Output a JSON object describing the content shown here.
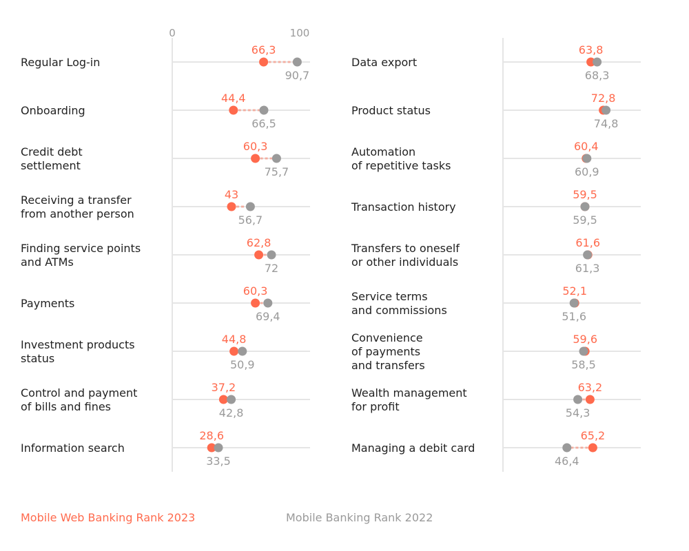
{
  "chart_data": {
    "type": "dumbbell",
    "title": "",
    "xlabel": "",
    "ylabel": "",
    "xlim": [
      0,
      100
    ],
    "x_ticks": [
      "0",
      "100"
    ],
    "grid": false,
    "colors": {
      "rank_2023": "#FF6A4D",
      "rank_2022": "#9A9A9A",
      "gridline": "#E5E5E5",
      "text": "#222222"
    },
    "legend": [
      {
        "name": "Mobile Web Banking Rank 2023",
        "color": "#FF6A4D"
      },
      {
        "name": "Mobile Banking Rank 2022",
        "color": "#9A9A9A"
      }
    ],
    "legend_position": "bottom-left",
    "panels": [
      {
        "name": "left",
        "rows": [
          {
            "category": [
              "Regular Log-in"
            ],
            "rank_2023": 66.3,
            "rank_2022": 90.7,
            "label_2023": "66,3",
            "label_2022": "90,7"
          },
          {
            "category": [
              "Onboarding"
            ],
            "rank_2023": 44.4,
            "rank_2022": 66.5,
            "label_2023": "44,4",
            "label_2022": "66,5"
          },
          {
            "category": [
              "Credit debt",
              "settlement"
            ],
            "rank_2023": 60.3,
            "rank_2022": 75.7,
            "label_2023": "60,3",
            "label_2022": "75,7"
          },
          {
            "category": [
              "Receiving a transfer",
              "from another person"
            ],
            "rank_2023": 43,
            "rank_2022": 56.7,
            "label_2023": "43",
            "label_2022": "56,7"
          },
          {
            "category": [
              "Finding service points",
              "and ATMs"
            ],
            "rank_2023": 62.8,
            "rank_2022": 72,
            "label_2023": "62,8",
            "label_2022": "72"
          },
          {
            "category": [
              "Payments"
            ],
            "rank_2023": 60.3,
            "rank_2022": 69.4,
            "label_2023": "60,3",
            "label_2022": "69,4"
          },
          {
            "category": [
              "Investment products",
              "status"
            ],
            "rank_2023": 44.8,
            "rank_2022": 50.9,
            "label_2023": "44,8",
            "label_2022": "50,9"
          },
          {
            "category": [
              "Control and payment",
              "of bills and fines"
            ],
            "rank_2023": 37.2,
            "rank_2022": 42.8,
            "label_2023": "37,2",
            "label_2022": "42,8"
          },
          {
            "category": [
              "Information search"
            ],
            "rank_2023": 28.6,
            "rank_2022": 33.5,
            "label_2023": "28,6",
            "label_2022": "33,5"
          }
        ]
      },
      {
        "name": "right",
        "rows": [
          {
            "category": [
              "Data export"
            ],
            "rank_2023": 63.8,
            "rank_2022": 68.3,
            "label_2023": "63,8",
            "label_2022": "68,3"
          },
          {
            "category": [
              "Product status"
            ],
            "rank_2023": 72.8,
            "rank_2022": 74.8,
            "label_2023": "72,8",
            "label_2022": "74,8"
          },
          {
            "category": [
              "Automation",
              "of repetitive tasks"
            ],
            "rank_2023": 60.4,
            "rank_2022": 60.9,
            "label_2023": "60,4",
            "label_2022": "60,9"
          },
          {
            "category": [
              "Transaction history"
            ],
            "rank_2023": 59.5,
            "rank_2022": 59.5,
            "label_2023": "59,5",
            "label_2022": "59,5"
          },
          {
            "category": [
              "Transfers to oneself",
              "or other individuals"
            ],
            "rank_2023": 61.6,
            "rank_2022": 61.3,
            "label_2023": "61,6",
            "label_2022": "61,3"
          },
          {
            "category": [
              "Service terms",
              "and commissions"
            ],
            "rank_2023": 52.1,
            "rank_2022": 51.6,
            "label_2023": "52,1",
            "label_2022": "51,6"
          },
          {
            "category": [
              "Convenience",
              "of payments",
              "and transfers"
            ],
            "rank_2023": 59.6,
            "rank_2022": 58.5,
            "label_2023": "59,6",
            "label_2022": "58,5"
          },
          {
            "category": [
              "Wealth management",
              "for profit"
            ],
            "rank_2023": 63.2,
            "rank_2022": 54.3,
            "label_2023": "63,2",
            "label_2022": "54,3"
          },
          {
            "category": [
              "Managing a debit card"
            ],
            "rank_2023": 65.2,
            "rank_2022": 46.4,
            "label_2023": "65,2",
            "label_2022": "46,4"
          }
        ]
      }
    ]
  }
}
